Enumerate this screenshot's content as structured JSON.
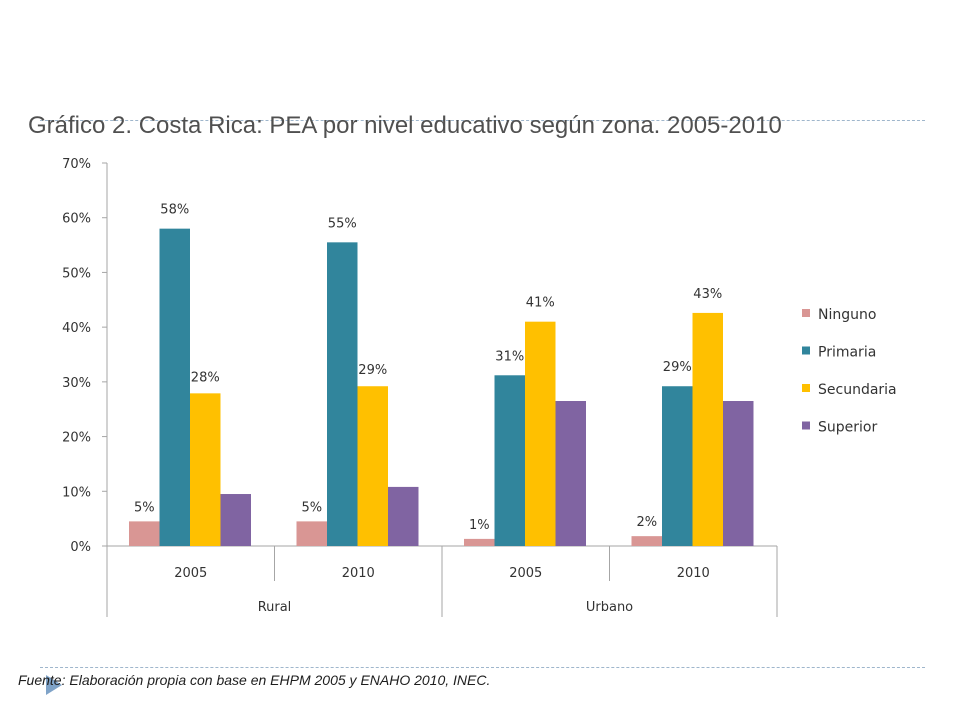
{
  "title": "Gráfico 2. Costa Rica: PEA por nivel educativo según zona. 2005-2010",
  "source": {
    "prefix": "Fuente: Elaboración propia con base en ",
    "ref1": "EHPM 2005",
    "mid": " y ",
    "ref2": "ENAHO 2010",
    "suffix": ", INEC."
  },
  "chart_data": {
    "type": "bar",
    "title": "Gráfico 2. Costa Rica: PEA por nivel educativo según zona. 2005-2010",
    "categories": [
      "2005",
      "2010",
      "2005",
      "2010"
    ],
    "groups": [
      {
        "label": "Rural",
        "categories": [
          "2005",
          "2010"
        ]
      },
      {
        "label": "Urbano",
        "categories": [
          "2005",
          "2010"
        ]
      }
    ],
    "yticks": [
      "0%",
      "10%",
      "20%",
      "30%",
      "40%",
      "50%",
      "60%",
      "70%"
    ],
    "ylim": [
      0,
      70
    ],
    "legend_position": "right",
    "grid": false,
    "series": [
      {
        "name": "Ninguno",
        "color": "#d99694",
        "values": [
          4.5,
          4.5,
          1.3,
          1.8
        ],
        "labels": [
          "5%",
          "5%",
          "1%",
          "2%"
        ]
      },
      {
        "name": "Primaria",
        "color": "#31859c",
        "values": [
          58,
          55.5,
          31.2,
          29.2
        ],
        "labels": [
          "58%",
          "55%",
          "31%",
          "29%"
        ]
      },
      {
        "name": "Secundaria",
        "color": "#ffc000",
        "values": [
          27.9,
          29.2,
          41,
          42.6
        ],
        "labels": [
          "28%",
          "29%",
          "41%",
          "43%"
        ]
      },
      {
        "name": "Superior",
        "color": "#8064a2",
        "values": [
          9.5,
          10.8,
          26.5,
          26.5
        ],
        "labels": [
          "",
          "",
          "",
          ""
        ]
      }
    ]
  }
}
